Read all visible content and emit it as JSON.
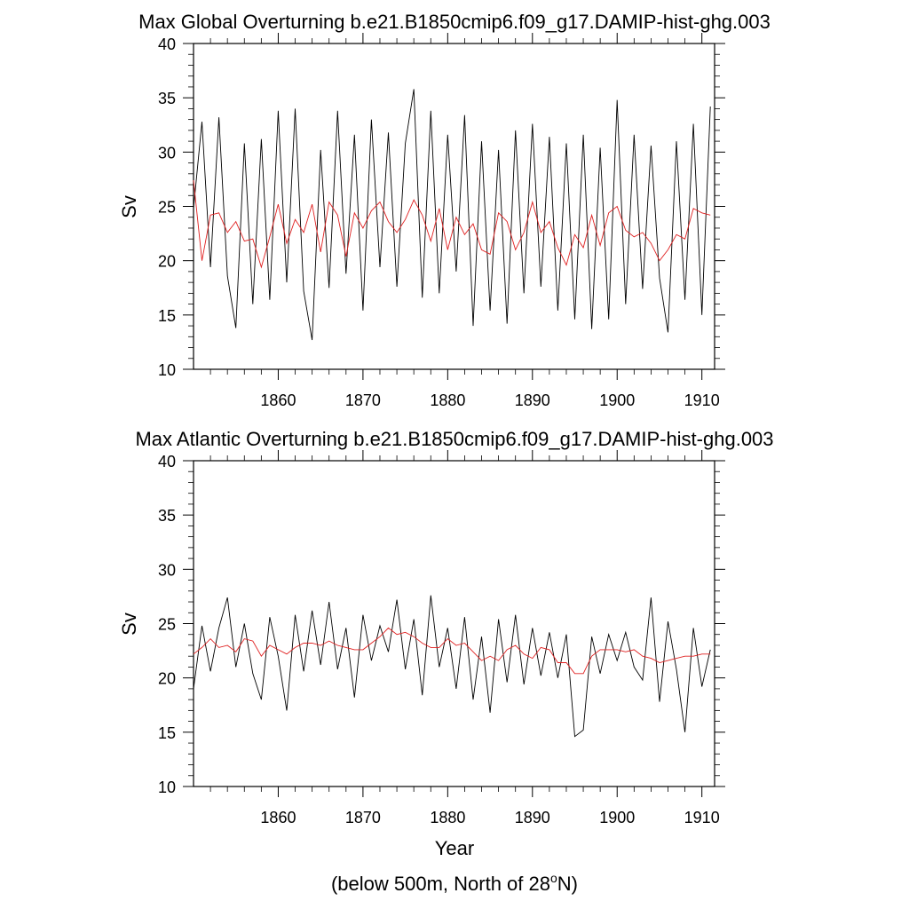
{
  "chart_data": [
    {
      "type": "line",
      "title": "Max Global Overturning b.e21.B1850cmip6.f09_g17.DAMIP-hist-ghg.003",
      "ylabel": "Sv",
      "xlabel": "",
      "xlim": [
        1850,
        1911.5
      ],
      "ylim": [
        10,
        40
      ],
      "x_ticks": [
        1860,
        1870,
        1880,
        1890,
        1900,
        1910
      ],
      "y_ticks": [
        10,
        15,
        20,
        25,
        30,
        35,
        40
      ],
      "grid": false,
      "legend": "none",
      "series": [
        {
          "color": "#000000",
          "x": [
            1850.0,
            1851.0,
            1852.0,
            1853.0,
            1854.0,
            1855.0,
            1856.0,
            1857.0,
            1858.0,
            1859.0,
            1860.0,
            1861.0,
            1862.0,
            1863.0,
            1864.0,
            1865.0,
            1866.0,
            1867.0,
            1868.0,
            1869.0,
            1870.0,
            1871.0,
            1872.0,
            1873.0,
            1874.0,
            1875.0,
            1876.0,
            1877.0,
            1878.0,
            1879.0,
            1880.0,
            1881.0,
            1882.0,
            1883.0,
            1884.0,
            1885.0,
            1886.0,
            1887.0,
            1888.0,
            1889.0,
            1890.0,
            1891.0,
            1892.0,
            1893.0,
            1894.0,
            1895.0,
            1896.0,
            1897.0,
            1898.0,
            1899.0,
            1900.0,
            1901.0,
            1902.0,
            1903.0,
            1904.0,
            1905.0,
            1906.0,
            1907.0,
            1908.0,
            1909.0,
            1910.0,
            1911.0
          ],
          "y": [
            24.8,
            32.8,
            19.4,
            33.2,
            18.6,
            13.8,
            30.8,
            16.0,
            31.2,
            16.4,
            33.8,
            18.0,
            34.0,
            17.2,
            12.7,
            30.2,
            17.5,
            33.8,
            18.8,
            31.6,
            15.4,
            33.0,
            19.4,
            31.8,
            17.6,
            30.8,
            35.8,
            16.6,
            33.8,
            17.0,
            31.6,
            19.0,
            33.4,
            14.0,
            31.0,
            15.4,
            30.2,
            14.2,
            32.0,
            17.0,
            32.6,
            17.6,
            31.4,
            15.4,
            30.8,
            14.6,
            31.6,
            13.7,
            30.4,
            14.6,
            34.8,
            16.0,
            31.6,
            17.4,
            30.6,
            18.4,
            13.4,
            31.0,
            16.4,
            32.6,
            15.0,
            34.2
          ]
        },
        {
          "color": "#e02020",
          "x": [
            1850.0,
            1851.0,
            1852.0,
            1853.0,
            1854.0,
            1855.0,
            1856.0,
            1857.0,
            1858.0,
            1859.0,
            1860.0,
            1861.0,
            1862.0,
            1863.0,
            1864.0,
            1865.0,
            1866.0,
            1867.0,
            1868.0,
            1869.0,
            1870.0,
            1871.0,
            1872.0,
            1873.0,
            1874.0,
            1875.0,
            1876.0,
            1877.0,
            1878.0,
            1879.0,
            1880.0,
            1881.0,
            1882.0,
            1883.0,
            1884.0,
            1885.0,
            1886.0,
            1887.0,
            1888.0,
            1889.0,
            1890.0,
            1891.0,
            1892.0,
            1893.0,
            1894.0,
            1895.0,
            1896.0,
            1897.0,
            1898.0,
            1899.0,
            1900.0,
            1901.0,
            1902.0,
            1903.0,
            1904.0,
            1905.0,
            1906.0,
            1907.0,
            1908.0,
            1909.0,
            1910.0,
            1911.0
          ],
          "y": [
            27.4,
            20.0,
            24.2,
            24.4,
            22.6,
            23.6,
            21.8,
            22.0,
            19.4,
            22.2,
            25.2,
            21.6,
            23.8,
            22.6,
            25.2,
            20.8,
            25.4,
            24.2,
            20.4,
            24.4,
            23.0,
            24.6,
            25.4,
            23.6,
            22.6,
            23.8,
            25.6,
            24.2,
            21.8,
            24.8,
            21.0,
            24.0,
            22.4,
            23.4,
            21.0,
            20.6,
            24.4,
            23.6,
            21.0,
            22.6,
            25.4,
            22.6,
            23.6,
            21.2,
            19.6,
            22.4,
            21.2,
            24.2,
            21.4,
            24.4,
            25.0,
            22.8,
            22.2,
            22.6,
            21.6,
            20.0,
            21.0,
            22.4,
            22.0,
            24.8,
            24.4,
            24.2
          ]
        }
      ]
    },
    {
      "type": "line",
      "title": "Max Atlantic Overturning b.e21.B1850cmip6.f09_g17.DAMIP-hist-ghg.003",
      "ylabel": "Sv",
      "xlabel": "Year",
      "xlim": [
        1850,
        1911.5
      ],
      "ylim": [
        10,
        40
      ],
      "x_ticks": [
        1860,
        1870,
        1880,
        1890,
        1900,
        1910
      ],
      "y_ticks": [
        10,
        15,
        20,
        25,
        30,
        35,
        40
      ],
      "grid": false,
      "legend": "none",
      "series": [
        {
          "color": "#000000",
          "x": [
            1850.0,
            1851.0,
            1852.0,
            1853.0,
            1854.0,
            1855.0,
            1856.0,
            1857.0,
            1858.0,
            1859.0,
            1860.0,
            1861.0,
            1862.0,
            1863.0,
            1864.0,
            1865.0,
            1866.0,
            1867.0,
            1868.0,
            1869.0,
            1870.0,
            1871.0,
            1872.0,
            1873.0,
            1874.0,
            1875.0,
            1876.0,
            1877.0,
            1878.0,
            1879.0,
            1880.0,
            1881.0,
            1882.0,
            1883.0,
            1884.0,
            1885.0,
            1886.0,
            1887.0,
            1888.0,
            1889.0,
            1890.0,
            1891.0,
            1892.0,
            1893.0,
            1894.0,
            1895.0,
            1896.0,
            1897.0,
            1898.0,
            1899.0,
            1900.0,
            1901.0,
            1902.0,
            1903.0,
            1904.0,
            1905.0,
            1906.0,
            1907.0,
            1908.0,
            1909.0,
            1910.0,
            1911.0
          ],
          "y": [
            19.0,
            24.8,
            20.6,
            24.6,
            27.4,
            21.0,
            25.0,
            20.4,
            18.0,
            25.6,
            22.0,
            17.0,
            25.8,
            20.6,
            26.2,
            21.2,
            27.0,
            20.8,
            24.6,
            18.2,
            25.8,
            21.6,
            24.8,
            22.4,
            27.2,
            20.8,
            25.4,
            18.4,
            27.6,
            21.0,
            24.6,
            19.0,
            25.6,
            18.0,
            23.8,
            16.8,
            25.4,
            19.6,
            25.8,
            19.4,
            24.6,
            20.2,
            24.2,
            20.0,
            24.0,
            14.6,
            15.2,
            23.8,
            20.4,
            24.0,
            21.6,
            24.2,
            21.0,
            19.8,
            27.4,
            17.8,
            25.2,
            20.8,
            15.0,
            24.6,
            19.2,
            22.6
          ]
        },
        {
          "color": "#e02020",
          "x": [
            1850.0,
            1851.0,
            1852.0,
            1853.0,
            1854.0,
            1855.0,
            1856.0,
            1857.0,
            1858.0,
            1859.0,
            1860.0,
            1861.0,
            1862.0,
            1863.0,
            1864.0,
            1865.0,
            1866.0,
            1867.0,
            1868.0,
            1869.0,
            1870.0,
            1871.0,
            1872.0,
            1873.0,
            1874.0,
            1875.0,
            1876.0,
            1877.0,
            1878.0,
            1879.0,
            1880.0,
            1881.0,
            1882.0,
            1883.0,
            1884.0,
            1885.0,
            1886.0,
            1887.0,
            1888.0,
            1889.0,
            1890.0,
            1891.0,
            1892.0,
            1893.0,
            1894.0,
            1895.0,
            1896.0,
            1897.0,
            1898.0,
            1899.0,
            1900.0,
            1901.0,
            1902.0,
            1903.0,
            1904.0,
            1905.0,
            1906.0,
            1907.0,
            1908.0,
            1909.0,
            1910.0,
            1911.0
          ],
          "y": [
            22.2,
            22.8,
            23.6,
            22.8,
            23.0,
            22.4,
            23.6,
            23.4,
            22.0,
            23.0,
            22.6,
            22.2,
            22.8,
            23.2,
            23.2,
            23.0,
            23.4,
            23.0,
            22.8,
            22.6,
            22.6,
            23.2,
            23.8,
            24.6,
            24.0,
            24.2,
            23.8,
            23.2,
            22.8,
            22.8,
            23.6,
            23.0,
            23.2,
            22.4,
            21.6,
            22.0,
            21.6,
            22.6,
            23.0,
            22.2,
            21.8,
            22.8,
            22.6,
            21.4,
            21.4,
            20.4,
            20.4,
            22.0,
            22.6,
            22.6,
            22.6,
            22.4,
            22.6,
            22.0,
            21.8,
            21.4,
            21.6,
            21.8,
            22.0,
            22.0,
            22.2,
            22.2
          ]
        }
      ]
    }
  ],
  "footnote": {
    "prefix": "(below 500m, North of 28",
    "superscript": "o",
    "suffix": "N)"
  }
}
